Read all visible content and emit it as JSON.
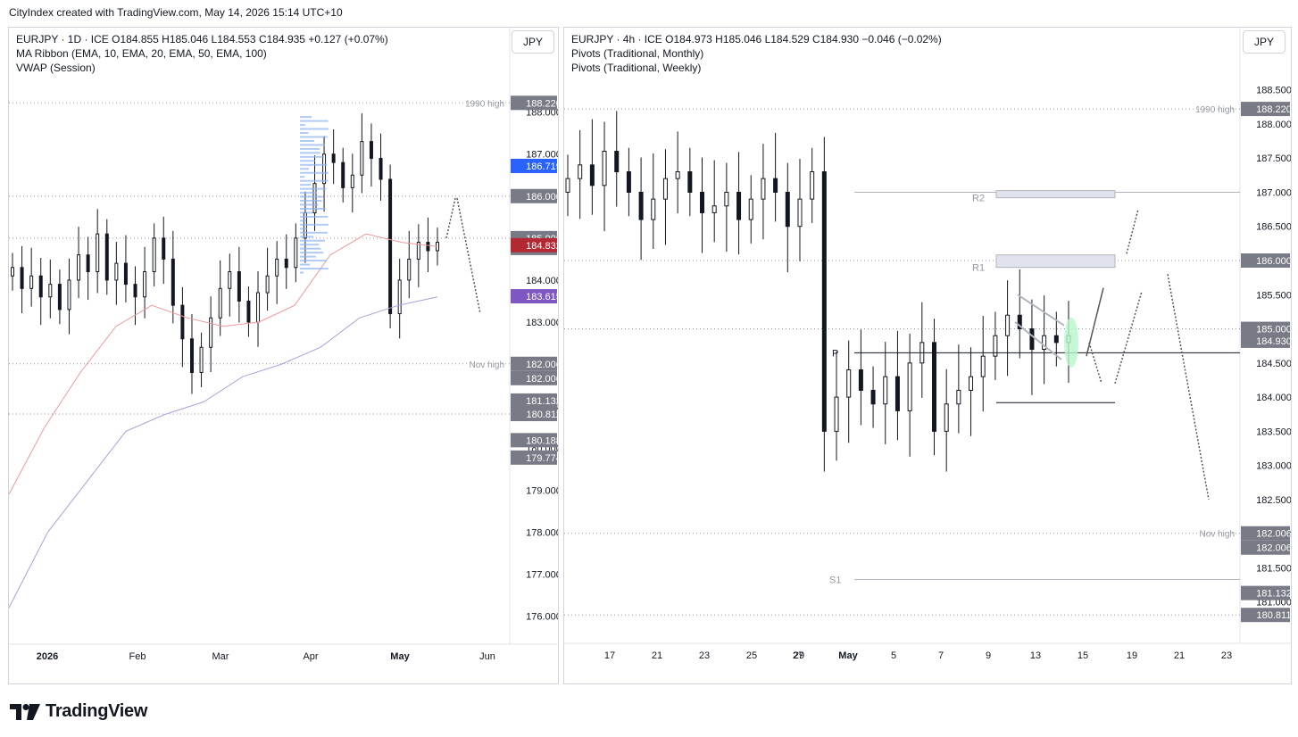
{
  "header": {
    "text": "CityIndex created with TradingView.com, May 14, 2026 15:14 UTC+10"
  },
  "footer": {
    "brand": "TradingView"
  },
  "colors": {
    "up": "#131722",
    "down": "#131722",
    "ema10": "#ef9a9a",
    "ema20": "#b39ddb",
    "pivot": "#131722",
    "level_dotted": "#9598a1",
    "zone": "#e0e3eb",
    "vol_profile": "#90b4f0",
    "highlight": "#b9f6ca",
    "badge_dark": "#787b86",
    "badge_blue": "#2962ff",
    "badge_red": "#b22833",
    "badge_purple": "#7e57c2"
  },
  "chart_data": [
    {
      "id": "daily",
      "type": "candlestick",
      "legend": [
        "EURJPY · 1D · ICE  O184.855  H185.046  L184.553  C184.935  +0.127 (+0.07%)",
        "MA Ribbon (EMA, 10, EMA, 20, EMA, 50, EMA, 100)",
        "VWAP (Session)"
      ],
      "currency": "JPY",
      "ylim": [
        175.5,
        188.8
      ],
      "y_ticks": [
        "188.000",
        "187.000",
        "186.000",
        "185.000",
        "184.000",
        "183.000",
        "182.000",
        "181.000",
        "180.000",
        "179.000",
        "178.000",
        "177.000",
        "176.000"
      ],
      "x_ticks": [
        "2026",
        "Feb",
        "Mar",
        "Apr",
        "May",
        "Jun"
      ],
      "price_badges": [
        {
          "label": "188.220",
          "kind": "dark"
        },
        {
          "label": "186.719",
          "kind": "blue"
        },
        {
          "label": "186.000",
          "kind": "dark"
        },
        {
          "label": "185.000",
          "kind": "dark"
        },
        {
          "label": "184.935",
          "kind": "dark"
        },
        {
          "label": "184.832",
          "kind": "red"
        },
        {
          "label": "183.615",
          "kind": "purple"
        },
        {
          "label": "182.006",
          "kind": "dark"
        },
        {
          "label": "182.006",
          "kind": "dark"
        },
        {
          "label": "181.132",
          "kind": "dark"
        },
        {
          "label": "180.811",
          "kind": "dark"
        },
        {
          "label": "180.188",
          "kind": "dark"
        },
        {
          "label": "179.774",
          "kind": "dark"
        }
      ],
      "annotations": [
        {
          "label": "1990 high",
          "value": 188.22
        },
        {
          "label": "Nov high",
          "value": 182.006
        }
      ],
      "levels": [
        188.22,
        186.0,
        185.0,
        182.006,
        180.811
      ],
      "ema_fast_values": [
        178.9,
        180.5,
        181.8,
        182.9,
        183.4,
        183.1,
        182.9,
        183.0,
        183.4,
        184.6,
        185.1,
        184.9,
        184.8
      ],
      "ema_slow_values": [
        176.2,
        178.0,
        179.2,
        180.4,
        180.8,
        181.1,
        181.7,
        182.0,
        182.4,
        183.1,
        183.4,
        183.6
      ],
      "candles_close": [
        184.3,
        183.8,
        184.1,
        183.6,
        183.9,
        183.3,
        184.0,
        184.6,
        184.2,
        185.1,
        184.0,
        184.4,
        183.9,
        183.6,
        184.2,
        185.0,
        184.5,
        183.4,
        182.6,
        181.8,
        182.4,
        183.1,
        183.8,
        184.2,
        183.5,
        183.0,
        183.7,
        184.1,
        184.5,
        184.3,
        185.0,
        185.6,
        186.3,
        187.0,
        186.8,
        186.2,
        186.5,
        187.3,
        186.9,
        186.4,
        183.2,
        184.0,
        184.5,
        184.9,
        184.7,
        184.9
      ],
      "volume_profile_range": [
        184.2,
        188.0
      ],
      "forecast_path": [
        [
          185.0,
          185.95
        ],
        [
          185.95,
          183.2
        ]
      ]
    },
    {
      "id": "h4",
      "type": "candlestick",
      "legend": [
        "EURJPY · 4h · ICE  O184.973  H185.046  L184.529  C184.930  −0.046 (−0.02%)",
        "Pivots (Traditional, Monthly)",
        "Pivots (Traditional, Weekly)"
      ],
      "currency": "JPY",
      "ylim": [
        180.5,
        188.6
      ],
      "y_ticks": [
        "188.500",
        "188.000",
        "187.500",
        "187.000",
        "186.500",
        "186.000",
        "185.500",
        "185.000",
        "184.500",
        "184.000",
        "183.500",
        "183.000",
        "182.500",
        "182.000",
        "181.500",
        "181.000"
      ],
      "x_ticks": [
        "17",
        "21",
        "23",
        "25",
        "27",
        "29",
        "May",
        "5",
        "7",
        "9",
        "13",
        "15",
        "19",
        "21",
        "23"
      ],
      "price_badges": [
        {
          "label": "188.220",
          "kind": "dark"
        },
        {
          "label": "186.000",
          "kind": "dark"
        },
        {
          "label": "185.000",
          "kind": "dark"
        },
        {
          "label": "184.930",
          "kind": "dark"
        },
        {
          "label": "182.006",
          "kind": "dark"
        },
        {
          "label": "182.006",
          "kind": "dark"
        },
        {
          "label": "181.132",
          "kind": "dark"
        },
        {
          "label": "180.811",
          "kind": "dark"
        }
      ],
      "annotations": [
        {
          "label": "1990 high",
          "value": 188.22
        },
        {
          "label": "Nov high",
          "value": 182.006
        }
      ],
      "pivot_labels": [
        {
          "label": "R2",
          "value": 186.92
        },
        {
          "label": "R1",
          "value": 185.9
        },
        {
          "label": "P",
          "value": 184.65
        },
        {
          "label": "S1",
          "value": 181.33
        }
      ],
      "monthly_pivots": [
        187.0,
        184.65,
        181.33
      ],
      "weekly_pivots": [
        186.92,
        185.9,
        183.92
      ],
      "levels": [
        188.22,
        186.0,
        185.0,
        182.006,
        180.811
      ],
      "candles_close": [
        187.2,
        187.4,
        187.1,
        187.6,
        187.3,
        187.0,
        186.6,
        186.9,
        187.2,
        187.3,
        187.0,
        186.7,
        186.8,
        187.0,
        186.6,
        186.9,
        187.2,
        187.0,
        186.5,
        186.9,
        187.3,
        183.5,
        184.0,
        184.4,
        184.1,
        183.9,
        184.3,
        183.8,
        184.5,
        184.8,
        183.5,
        183.9,
        184.1,
        184.3,
        184.6,
        184.9,
        185.2,
        185.0,
        184.7,
        184.9,
        184.8,
        184.9
      ],
      "forecast_paths": [
        [
          [
            184.6,
            185.6
          ]
        ],
        [
          [
            184.8,
            184.2
          ],
          [
            184.2,
            185.55
          ]
        ],
        [
          [
            185.8,
            182.5
          ]
        ],
        [
          [
            186.1,
            186.75
          ]
        ]
      ]
    }
  ]
}
